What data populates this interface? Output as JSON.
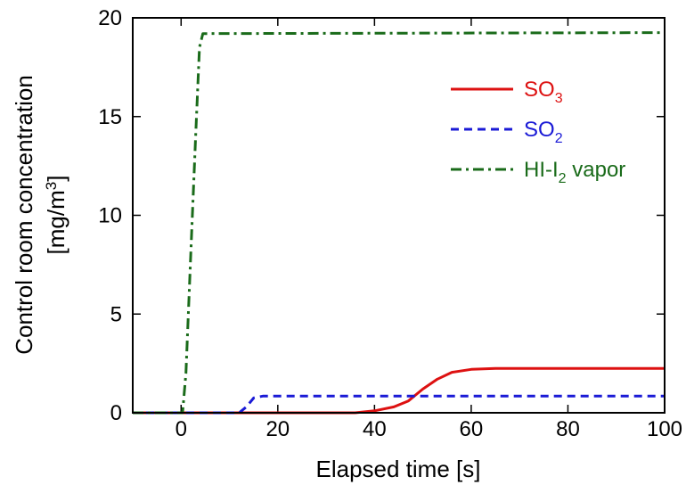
{
  "chart_data": {
    "type": "line",
    "xlabel": "Elapsed time [s]",
    "ylabel_line1": "Control room concentration",
    "ylabel_line2_base": "[mg/m",
    "ylabel_line2_sup": "3",
    "ylabel_line2_end": "]",
    "xlim": [
      -10,
      100
    ],
    "ylim": [
      0,
      20
    ],
    "xticks": [
      0,
      20,
      40,
      60,
      80,
      100
    ],
    "yticks": [
      0,
      5,
      10,
      15,
      20
    ],
    "legend_position": "top-right",
    "series": [
      {
        "legend_base": "SO",
        "legend_sub": "3",
        "legend_after": "",
        "color": "#dd1111",
        "dash": "solid",
        "points": [
          [
            -10,
            0
          ],
          [
            36,
            0
          ],
          [
            40,
            0.1
          ],
          [
            44,
            0.3
          ],
          [
            47,
            0.6
          ],
          [
            50,
            1.2
          ],
          [
            53,
            1.7
          ],
          [
            56,
            2.05
          ],
          [
            60,
            2.2
          ],
          [
            65,
            2.25
          ],
          [
            100,
            2.25
          ]
        ]
      },
      {
        "legend_base": "SO",
        "legend_sub": "2",
        "legend_after": "",
        "color": "#1a1ad6",
        "dash": "dashed",
        "points": [
          [
            -10,
            0
          ],
          [
            12,
            0
          ],
          [
            13.5,
            0.3
          ],
          [
            15,
            0.75
          ],
          [
            17,
            0.85
          ],
          [
            100,
            0.85
          ]
        ]
      },
      {
        "legend_base": "HI-I",
        "legend_sub": "2",
        "legend_after": " vapor",
        "color": "#1a6b1a",
        "dash": "dashdot",
        "points": [
          [
            -10,
            0
          ],
          [
            0.3,
            0
          ],
          [
            1,
            2
          ],
          [
            2,
            8
          ],
          [
            3,
            14
          ],
          [
            3.8,
            18.5
          ],
          [
            4.5,
            19.2
          ],
          [
            100,
            19.25
          ]
        ]
      }
    ]
  }
}
